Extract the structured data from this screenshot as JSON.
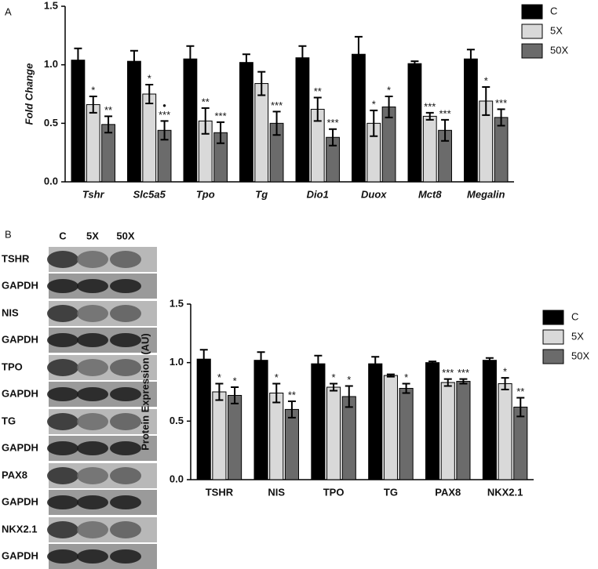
{
  "panel_labels": [
    "A",
    "B"
  ],
  "blot": {
    "lanes": [
      "C",
      "5X",
      "50X"
    ],
    "rows": [
      "TSHR",
      "GAPDH",
      "NIS",
      "GAPDH",
      "TPO",
      "GAPDH",
      "TG",
      "GAPDH",
      "PAX8",
      "GAPDH",
      "NKX2.1",
      "GAPDH"
    ]
  },
  "chart_data": [
    {
      "type": "bar",
      "y_label": "Fold Change",
      "italic": true,
      "categories": [
        "Tshr",
        "Slc5a5",
        "Tpo",
        "Tg",
        "Dio1",
        "Duox",
        "Mct8",
        "Megalin"
      ],
      "series": [
        {
          "name": "C",
          "color": "#000000",
          "values": [
            1.04,
            1.03,
            1.05,
            1.02,
            1.06,
            1.09,
            1.01,
            1.05
          ],
          "errors": [
            0.1,
            0.09,
            0.11,
            0.07,
            0.1,
            0.15,
            0.02,
            0.08
          ]
        },
        {
          "name": "5X",
          "color": "#d9d9d9",
          "values": [
            0.66,
            0.75,
            0.52,
            0.84,
            0.62,
            0.5,
            0.56,
            0.69
          ],
          "errors": [
            0.07,
            0.08,
            0.11,
            0.1,
            0.1,
            0.11,
            0.03,
            0.12
          ],
          "annotations": [
            "*",
            "*",
            "**",
            null,
            "**",
            "*",
            "***",
            "*"
          ]
        },
        {
          "name": "50X",
          "color": "#6b6b6b",
          "values": [
            0.49,
            0.44,
            0.42,
            0.5,
            0.38,
            0.64,
            0.44,
            0.55
          ],
          "errors": [
            0.07,
            0.08,
            0.09,
            0.1,
            0.07,
            0.09,
            0.09,
            0.07
          ],
          "annotations": [
            "**",
            [
              "•",
              "***"
            ],
            "***",
            "***",
            "***",
            "*",
            "***",
            "***"
          ]
        }
      ],
      "ylim": [
        0,
        1.5
      ],
      "yticks": [
        {
          "value": 0,
          "label": "0.0"
        },
        0.5,
        {
          "value": 1,
          "label": "1.0"
        },
        1.5
      ],
      "legend": "upper right"
    },
    {
      "type": "bar",
      "y_label": "Protein Expression (AU)",
      "italic": false,
      "categories": [
        "TSHR",
        "NIS",
        "TPO",
        "TG",
        "PAX8",
        "NKX2.1"
      ],
      "series": [
        {
          "name": "C",
          "color": "#000000",
          "values": [
            1.03,
            1.02,
            0.99,
            0.99,
            1.0,
            1.02
          ],
          "errors": [
            0.08,
            0.07,
            0.07,
            0.06,
            0.01,
            0.02
          ]
        },
        {
          "name": "5X",
          "color": "#d9d9d9",
          "values": [
            0.75,
            0.74,
            0.79,
            0.89,
            0.83,
            0.82
          ],
          "errors": [
            0.07,
            0.08,
            0.03,
            0.01,
            0.03,
            0.05
          ],
          "annotations": [
            "*",
            "*",
            "*",
            null,
            "***",
            "*"
          ]
        },
        {
          "name": "50X",
          "color": "#6b6b6b",
          "values": [
            0.72,
            0.6,
            0.71,
            0.78,
            0.84,
            0.62
          ],
          "errors": [
            0.07,
            0.07,
            0.09,
            0.04,
            0.02,
            0.08
          ],
          "annotations": [
            "*",
            "**",
            "*",
            "*",
            "***",
            "**"
          ]
        }
      ],
      "ylim": [
        0,
        1.5
      ],
      "yticks": [
        {
          "value": 0,
          "label": "0.0"
        },
        0.5,
        {
          "value": 1,
          "label": "1.0"
        },
        1.5
      ],
      "legend": "upper right"
    }
  ]
}
